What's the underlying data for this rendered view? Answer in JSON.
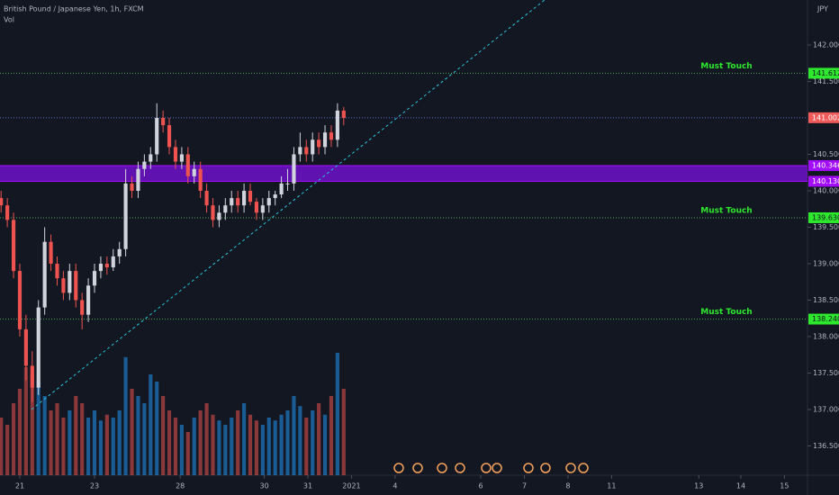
{
  "chart_data": {
    "type": "candlestick",
    "title": "British Pound / Japanese Yen, 1h, FXCM",
    "volume_label": "Vol",
    "currency": "JPY",
    "x": [
      -12,
      -8,
      -4,
      0,
      4,
      8,
      12,
      16,
      20,
      24,
      28,
      32,
      36,
      40,
      44,
      48,
      52,
      56,
      60,
      64,
      68,
      72,
      76,
      80,
      84,
      88,
      92,
      96,
      100,
      104,
      108,
      112,
      116,
      120,
      124,
      128,
      132,
      136,
      140,
      144,
      148,
      152,
      156,
      160,
      164,
      168,
      172,
      176,
      180,
      184,
      188,
      192,
      196,
      200,
      204,
      208
    ],
    "open": [
      139.9,
      139.8,
      139.6,
      138.9,
      138.1,
      137.6,
      137.3,
      138.4,
      139.3,
      139.0,
      138.8,
      138.6,
      138.9,
      138.5,
      138.3,
      138.7,
      138.9,
      139.0,
      138.95,
      139.1,
      139.2,
      140.1,
      140.0,
      140.3,
      140.4,
      140.5,
      141.0,
      140.9,
      140.6,
      140.4,
      140.5,
      140.2,
      140.3,
      140.0,
      139.8,
      139.6,
      139.7,
      139.8,
      139.9,
      139.8,
      140.0,
      139.85,
      139.7,
      139.8,
      139.9,
      139.95,
      140.1,
      140.1,
      140.5,
      140.6,
      140.5,
      140.7,
      140.6,
      140.8,
      140.7,
      141.1
    ],
    "high": [
      140.0,
      139.9,
      139.7,
      139.0,
      138.3,
      137.8,
      138.5,
      139.5,
      139.4,
      139.1,
      138.9,
      139.0,
      139.0,
      138.6,
      138.8,
      139.0,
      139.1,
      139.1,
      139.2,
      139.3,
      140.3,
      140.2,
      140.4,
      140.5,
      140.6,
      141.2,
      141.1,
      141.0,
      140.7,
      140.6,
      140.6,
      140.4,
      140.4,
      140.1,
      139.9,
      139.8,
      139.9,
      140.0,
      140.0,
      140.1,
      140.1,
      139.9,
      139.9,
      140.0,
      140.0,
      140.2,
      140.3,
      140.6,
      140.8,
      140.7,
      140.8,
      140.8,
      140.9,
      140.9,
      141.2,
      141.15
    ],
    "low": [
      139.7,
      139.5,
      138.8,
      138.0,
      137.4,
      137.1,
      137.2,
      138.3,
      138.9,
      138.7,
      138.5,
      138.5,
      138.4,
      138.1,
      138.2,
      138.6,
      138.8,
      138.85,
      138.9,
      139.0,
      139.1,
      139.9,
      139.9,
      140.2,
      140.3,
      140.4,
      140.8,
      140.5,
      140.3,
      140.3,
      140.1,
      140.1,
      139.9,
      139.7,
      139.5,
      139.5,
      139.6,
      139.7,
      139.7,
      139.7,
      139.8,
      139.6,
      139.6,
      139.7,
      139.8,
      139.9,
      140.0,
      140.0,
      140.4,
      140.4,
      140.4,
      140.5,
      140.5,
      140.6,
      140.6,
      140.9
    ],
    "close": [
      139.8,
      139.6,
      138.9,
      138.1,
      137.6,
      137.3,
      138.4,
      139.3,
      139.0,
      138.8,
      138.6,
      138.9,
      138.5,
      138.3,
      138.7,
      138.9,
      139.0,
      138.95,
      139.1,
      139.2,
      140.1,
      140.0,
      140.3,
      140.4,
      140.5,
      141.0,
      140.9,
      140.6,
      140.4,
      140.5,
      140.2,
      140.3,
      140.0,
      139.8,
      139.6,
      139.7,
      139.8,
      139.9,
      139.8,
      140.0,
      139.85,
      139.7,
      139.8,
      139.9,
      139.95,
      140.1,
      140.1,
      140.5,
      140.6,
      140.5,
      140.7,
      140.6,
      140.8,
      140.7,
      141.1,
      141.0
    ],
    "volume": [
      40,
      35,
      50,
      60,
      75,
      70,
      65,
      55,
      45,
      50,
      40,
      45,
      55,
      50,
      40,
      45,
      38,
      42,
      40,
      45,
      82,
      60,
      55,
      50,
      70,
      65,
      55,
      45,
      40,
      35,
      30,
      40,
      45,
      50,
      42,
      38,
      35,
      40,
      45,
      50,
      42,
      38,
      35,
      40,
      38,
      42,
      45,
      55,
      48,
      40,
      45,
      50,
      42,
      55,
      85,
      60
    ],
    "volume_lim": [
      0,
      100
    ],
    "up_color": "#d1d4dc",
    "down_color": "#ef5350",
    "volume_up_color": "#2196f3",
    "volume_down_color": "#ef5350",
    "xlim": [
      -12.7,
      505.8
    ],
    "ylim": [
      136.099,
      142.617
    ],
    "xticks": [
      {
        "value": 0,
        "label": "21"
      },
      {
        "value": 48,
        "label": "23"
      },
      {
        "value": 103,
        "label": "28"
      },
      {
        "value": 157,
        "label": "30"
      },
      {
        "value": 185,
        "label": "31"
      },
      {
        "value": 213,
        "label": "2021"
      },
      {
        "value": 241,
        "label": "4"
      },
      {
        "value": 296,
        "label": "6"
      },
      {
        "value": 324,
        "label": "7"
      },
      {
        "value": 352,
        "label": "8"
      },
      {
        "value": 380,
        "label": "11"
      },
      {
        "value": 436,
        "label": "13"
      },
      {
        "value": 463,
        "label": "14"
      },
      {
        "value": 491,
        "label": "15"
      }
    ],
    "yticks": [
      {
        "value": 142,
        "label": "142.000"
      },
      {
        "value": 141.5,
        "label": "141.500"
      },
      {
        "value": 140.5,
        "label": "140.500"
      },
      {
        "value": 140,
        "label": "140.000"
      },
      {
        "value": 139.5,
        "label": "139.500"
      },
      {
        "value": 139,
        "label": "139.000"
      },
      {
        "value": 138.5,
        "label": "138.500"
      },
      {
        "value": 138,
        "label": "138.000"
      },
      {
        "value": 137.5,
        "label": "137.500"
      },
      {
        "value": 137,
        "label": "137.000"
      },
      {
        "value": 136.5,
        "label": "136.500"
      }
    ],
    "price_lines": [
      {
        "price": 141.612,
        "label": "141.612",
        "color": "#4caf50",
        "label_color": "#2ee82e",
        "text_color": "#131722"
      },
      {
        "price": 141.002,
        "label": "141.002",
        "color": "#5b74d6",
        "label_color": "#f05a5a",
        "text_color": "#ffffff"
      },
      {
        "price": 139.63,
        "label": "139.630",
        "color": "#4caf50",
        "label_color": "#2ee82e",
        "text_color": "#131722"
      },
      {
        "price": 138.24,
        "label": "138.240",
        "color": "#4caf50",
        "label_color": "#2ee82e",
        "text_color": "#131722"
      }
    ],
    "zone": {
      "top": {
        "value": 140.346,
        "label": "140.346"
      },
      "bottom": {
        "value": 140.13,
        "label": "140.130"
      },
      "color": "#7b12e0",
      "label_color": "#a20cff"
    },
    "annotations": [
      {
        "text": "Must Touch",
        "price": 141.612
      },
      {
        "text": "Must Touch",
        "price": 139.63
      },
      {
        "text": "Must Touch",
        "price": 138.24
      }
    ],
    "trendline": {
      "x": [
        7.5,
        337
      ],
      "y": [
        137.0,
        142.617
      ],
      "color": "#26c6da"
    }
  }
}
